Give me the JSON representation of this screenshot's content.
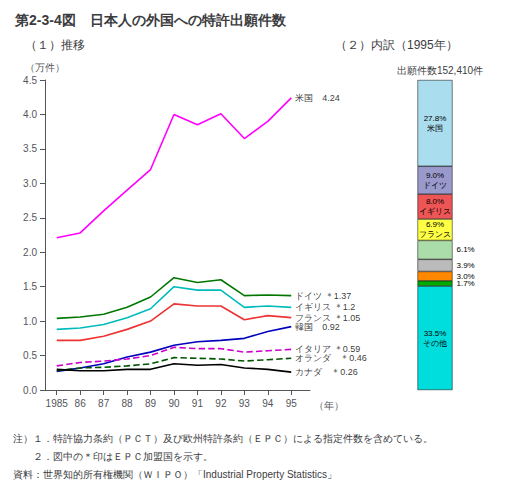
{
  "title": "第2-3-4図　日本人の外国への特許出願件数",
  "notes": [
    "注）１．特許協力条約（ＰＣＴ）及び欧州特許条約（ＥＰＣ）による指定件数を含めている。",
    "　　２．図中の＊印はＥＰＣ加盟国を示す。",
    "資料：世界知的所有権機関（ＷＩＰＯ）「Industrial Property Statistics」"
  ],
  "chart_data": [
    {
      "type": "line",
      "title": "（１）推移",
      "x": [
        1985,
        1986,
        1987,
        1988,
        1989,
        1990,
        1991,
        1992,
        1993,
        1994,
        1995
      ],
      "xlim": [
        1984.5,
        1995.8
      ],
      "xticks": [
        1985,
        {
          "value": 1986,
          "label": "86"
        },
        {
          "value": 1987,
          "label": "87"
        },
        {
          "value": 1988,
          "label": "88"
        },
        {
          "value": 1989,
          "label": "89"
        },
        {
          "value": 1990,
          "label": "90"
        },
        {
          "value": 1991,
          "label": "91"
        },
        {
          "value": 1992,
          "label": "92"
        },
        {
          "value": 1993,
          "label": "93"
        },
        {
          "value": 1994,
          "label": "94"
        },
        {
          "value": 1995,
          "label": "95"
        }
      ],
      "xlabel": "（年）",
      "ylim": [
        0.0,
        4.5
      ],
      "yticks": [
        {
          "value": 0,
          "label": "0.0"
        },
        0.5,
        {
          "value": 1,
          "label": "1.0"
        },
        1.5,
        {
          "value": 2,
          "label": "2.0"
        },
        2.5,
        {
          "value": 3,
          "label": "3.0"
        },
        3.5,
        {
          "value": 4,
          "label": "4.0"
        },
        4.5
      ],
      "ylabel": "（万件）",
      "grid": false,
      "series": [
        {
          "name": "米国",
          "color": "#FF00FF",
          "line_style": "solid",
          "values": [
            2.21,
            2.28,
            2.6,
            2.9,
            3.2,
            4.0,
            3.85,
            4.01,
            3.65,
            3.9,
            4.24
          ]
        },
        {
          "name": "ドイツ",
          "color": "#007700",
          "line_style": "solid",
          "values": [
            1.04,
            1.06,
            1.1,
            1.2,
            1.35,
            1.63,
            1.56,
            1.6,
            1.37,
            1.38,
            1.37
          ]
        },
        {
          "name": "イギリス",
          "color": "#00BBBB",
          "line_style": "solid",
          "values": [
            0.88,
            0.9,
            0.95,
            1.05,
            1.18,
            1.5,
            1.45,
            1.45,
            1.2,
            1.22,
            1.2
          ]
        },
        {
          "name": "フランス",
          "color": "#EE3333",
          "line_style": "solid",
          "values": [
            0.72,
            0.72,
            0.78,
            0.88,
            1.0,
            1.25,
            1.22,
            1.22,
            1.02,
            1.08,
            1.05
          ]
        },
        {
          "name": "韓国",
          "color": "#0000BB",
          "line_style": "solid",
          "values": [
            0.27,
            0.32,
            0.38,
            0.48,
            0.55,
            0.65,
            0.7,
            0.72,
            0.75,
            0.85,
            0.92
          ]
        },
        {
          "name": "イタリア",
          "color": "#CC00CC",
          "line_style": "dashed",
          "values": [
            0.35,
            0.4,
            0.42,
            0.45,
            0.5,
            0.62,
            0.6,
            0.6,
            0.55,
            0.57,
            0.59
          ]
        },
        {
          "name": "オランダ",
          "color": "#005500",
          "line_style": "dashed",
          "values": [
            0.28,
            0.32,
            0.33,
            0.35,
            0.38,
            0.47,
            0.46,
            0.45,
            0.42,
            0.44,
            0.46
          ]
        },
        {
          "name": "カナダ",
          "color": "#000000",
          "line_style": "solid",
          "values": [
            0.3,
            0.28,
            0.28,
            0.3,
            0.3,
            0.38,
            0.36,
            0.37,
            0.32,
            0.3,
            0.26
          ]
        }
      ],
      "annotations": [
        {
          "text": "米国　4.24",
          "x": 1995,
          "y": 4.24
        },
        {
          "text": "ドイツ ＊1.37",
          "x": 1995,
          "y": 1.37
        },
        {
          "text": "イギリス ＊1.2",
          "x": 1995,
          "y": 1.2
        },
        {
          "text": "フランス ＊1.05",
          "x": 1995,
          "y": 1.05
        },
        {
          "text": "韓国　0.92",
          "x": 1995,
          "y": 0.92
        },
        {
          "text": "イタリア ＊0.59",
          "x": 1995,
          "y": 0.59
        },
        {
          "text": "オランダ　＊0.46",
          "x": 1995,
          "y": 0.46
        },
        {
          "text": "カナダ　＊0.26",
          "x": 1995,
          "y": 0.26
        }
      ]
    },
    {
      "type": "bar",
      "title": "（２）内訳（1995年）",
      "subtitle": "出願件数152,410件",
      "stacked": true,
      "data_labels": true,
      "tick_labels": false,
      "series": [
        {
          "name": "その他",
          "color": "#00DDDD",
          "values": [
            33.5
          ],
          "value_labels": [
            "33.5%"
          ]
        },
        {
          "color": "#00AA00",
          "values": [
            1.7
          ],
          "value_labels": [
            "1.7%"
          ]
        },
        {
          "color": "#FF8800",
          "values": [
            3.0
          ],
          "value_labels": [
            "3.0%"
          ]
        },
        {
          "color": "#BBBBBB",
          "values": [
            3.9
          ],
          "value_labels": [
            "3.9%"
          ]
        },
        {
          "color": "#AADDAA",
          "values": [
            6.1
          ],
          "value_labels": [
            "6.1%"
          ]
        },
        {
          "name": "フランス",
          "color": "#FFFF44",
          "values": [
            6.9
          ],
          "value_labels": [
            "6.9%"
          ]
        },
        {
          "name": "イギリス",
          "color": "#EE5555",
          "values": [
            8.0
          ],
          "value_labels": [
            "8.0%"
          ]
        },
        {
          "name": "ドイツ",
          "color": "#9999CC",
          "values": [
            9.0
          ],
          "value_labels": [
            "9.0%"
          ]
        },
        {
          "name": "米国",
          "color": "#AADDEE",
          "values": [
            27.8
          ],
          "value_labels": [
            "27.8%"
          ]
        }
      ]
    }
  ]
}
